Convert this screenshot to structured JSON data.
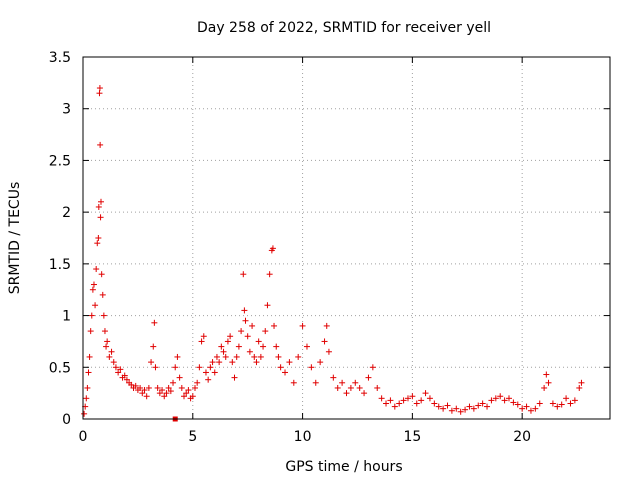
{
  "chart_data": {
    "type": "scatter",
    "title": "Day 258 of 2022, SRMTID for receiver yell",
    "xlabel": "GPS time / hours",
    "ylabel": "SRMTID / TECUs",
    "xlim": [
      0,
      24
    ],
    "ylim": [
      0,
      3.5
    ],
    "xticks": [
      0,
      5,
      10,
      15,
      20
    ],
    "yticks": [
      0,
      0.5,
      1,
      1.5,
      2,
      2.5,
      3,
      3.5
    ],
    "xtick_labels": [
      "0",
      "5",
      "10",
      "15",
      "20"
    ],
    "ytick_labels": [
      "0",
      "0.5",
      "1",
      "1.5",
      "2",
      "2.5",
      "3",
      "3.5"
    ],
    "grid": true,
    "marker": "plus",
    "color": "#e00000",
    "series": [
      {
        "name": "SRMTID",
        "points": [
          [
            0.05,
            0.05
          ],
          [
            0.1,
            0.12
          ],
          [
            0.15,
            0.2
          ],
          [
            0.2,
            0.3
          ],
          [
            0.25,
            0.45
          ],
          [
            0.3,
            0.6
          ],
          [
            0.35,
            0.85
          ],
          [
            0.4,
            1.0
          ],
          [
            0.45,
            1.25
          ],
          [
            0.5,
            1.3
          ],
          [
            0.55,
            1.1
          ],
          [
            0.6,
            1.45
          ],
          [
            0.65,
            1.7
          ],
          [
            0.7,
            1.75
          ],
          [
            0.72,
            2.05
          ],
          [
            0.75,
            3.15
          ],
          [
            0.77,
            3.2
          ],
          [
            0.78,
            2.65
          ],
          [
            0.8,
            1.95
          ],
          [
            0.82,
            2.1
          ],
          [
            0.85,
            1.4
          ],
          [
            0.9,
            1.2
          ],
          [
            0.95,
            1.0
          ],
          [
            1.0,
            0.85
          ],
          [
            1.05,
            0.7
          ],
          [
            1.1,
            0.75
          ],
          [
            1.2,
            0.6
          ],
          [
            1.3,
            0.65
          ],
          [
            1.4,
            0.55
          ],
          [
            1.5,
            0.5
          ],
          [
            1.6,
            0.45
          ],
          [
            1.7,
            0.48
          ],
          [
            1.8,
            0.4
          ],
          [
            1.9,
            0.42
          ],
          [
            2.0,
            0.38
          ],
          [
            2.1,
            0.35
          ],
          [
            2.2,
            0.33
          ],
          [
            2.3,
            0.3
          ],
          [
            2.4,
            0.32
          ],
          [
            2.5,
            0.28
          ],
          [
            2.6,
            0.3
          ],
          [
            2.7,
            0.25
          ],
          [
            2.8,
            0.28
          ],
          [
            2.9,
            0.22
          ],
          [
            3.0,
            0.3
          ],
          [
            3.1,
            0.55
          ],
          [
            3.2,
            0.7
          ],
          [
            3.25,
            0.93
          ],
          [
            3.3,
            0.5
          ],
          [
            3.4,
            0.3
          ],
          [
            3.5,
            0.25
          ],
          [
            3.6,
            0.28
          ],
          [
            3.7,
            0.22
          ],
          [
            3.8,
            0.25
          ],
          [
            3.9,
            0.3
          ],
          [
            4.0,
            0.27
          ],
          [
            4.1,
            0.35
          ],
          [
            4.2,
            0.5
          ],
          [
            4.3,
            0.6
          ],
          [
            4.4,
            0.4
          ],
          [
            4.5,
            0.3
          ],
          [
            4.6,
            0.22
          ],
          [
            4.7,
            0.25
          ],
          [
            4.8,
            0.28
          ],
          [
            4.9,
            0.2
          ],
          [
            5.0,
            0.22
          ],
          [
            5.1,
            0.3
          ],
          [
            5.2,
            0.35
          ],
          [
            5.3,
            0.5
          ],
          [
            5.4,
            0.75
          ],
          [
            5.5,
            0.8
          ],
          [
            5.6,
            0.45
          ],
          [
            5.7,
            0.38
          ],
          [
            5.8,
            0.5
          ],
          [
            5.9,
            0.55
          ],
          [
            6.0,
            0.45
          ],
          [
            6.1,
            0.6
          ],
          [
            6.2,
            0.55
          ],
          [
            6.3,
            0.7
          ],
          [
            6.4,
            0.65
          ],
          [
            6.5,
            0.6
          ],
          [
            6.6,
            0.75
          ],
          [
            6.7,
            0.8
          ],
          [
            6.8,
            0.55
          ],
          [
            6.9,
            0.4
          ],
          [
            7.0,
            0.6
          ],
          [
            7.1,
            0.7
          ],
          [
            7.2,
            0.85
          ],
          [
            7.3,
            1.4
          ],
          [
            7.35,
            1.05
          ],
          [
            7.4,
            0.95
          ],
          [
            7.5,
            0.8
          ],
          [
            7.6,
            0.65
          ],
          [
            7.7,
            0.9
          ],
          [
            7.8,
            0.6
          ],
          [
            7.9,
            0.55
          ],
          [
            8.0,
            0.75
          ],
          [
            8.1,
            0.6
          ],
          [
            8.2,
            0.7
          ],
          [
            8.3,
            0.85
          ],
          [
            8.4,
            1.1
          ],
          [
            8.5,
            1.4
          ],
          [
            8.6,
            1.63
          ],
          [
            8.65,
            1.65
          ],
          [
            8.7,
            0.9
          ],
          [
            8.8,
            0.7
          ],
          [
            8.9,
            0.6
          ],
          [
            9.0,
            0.5
          ],
          [
            9.2,
            0.45
          ],
          [
            9.4,
            0.55
          ],
          [
            9.6,
            0.35
          ],
          [
            9.8,
            0.6
          ],
          [
            10.0,
            0.9
          ],
          [
            10.2,
            0.7
          ],
          [
            10.4,
            0.5
          ],
          [
            10.6,
            0.35
          ],
          [
            10.8,
            0.55
          ],
          [
            11.0,
            0.75
          ],
          [
            11.1,
            0.9
          ],
          [
            11.2,
            0.65
          ],
          [
            11.4,
            0.4
          ],
          [
            11.6,
            0.3
          ],
          [
            11.8,
            0.35
          ],
          [
            12.0,
            0.25
          ],
          [
            12.2,
            0.3
          ],
          [
            12.4,
            0.35
          ],
          [
            12.6,
            0.3
          ],
          [
            12.8,
            0.25
          ],
          [
            13.0,
            0.4
          ],
          [
            13.2,
            0.5
          ],
          [
            13.4,
            0.3
          ],
          [
            13.6,
            0.2
          ],
          [
            13.8,
            0.15
          ],
          [
            14.0,
            0.18
          ],
          [
            14.2,
            0.12
          ],
          [
            14.4,
            0.15
          ],
          [
            14.6,
            0.18
          ],
          [
            14.8,
            0.2
          ],
          [
            15.0,
            0.22
          ],
          [
            15.2,
            0.15
          ],
          [
            15.4,
            0.18
          ],
          [
            15.6,
            0.25
          ],
          [
            15.8,
            0.2
          ],
          [
            16.0,
            0.15
          ],
          [
            16.2,
            0.12
          ],
          [
            16.4,
            0.1
          ],
          [
            16.6,
            0.13
          ],
          [
            16.8,
            0.08
          ],
          [
            17.0,
            0.1
          ],
          [
            17.2,
            0.07
          ],
          [
            17.4,
            0.09
          ],
          [
            17.6,
            0.12
          ],
          [
            17.8,
            0.1
          ],
          [
            18.0,
            0.13
          ],
          [
            18.2,
            0.15
          ],
          [
            18.4,
            0.12
          ],
          [
            18.6,
            0.18
          ],
          [
            18.8,
            0.2
          ],
          [
            19.0,
            0.22
          ],
          [
            19.2,
            0.18
          ],
          [
            19.4,
            0.2
          ],
          [
            19.6,
            0.16
          ],
          [
            19.8,
            0.14
          ],
          [
            20.0,
            0.1
          ],
          [
            20.2,
            0.12
          ],
          [
            20.4,
            0.08
          ],
          [
            20.6,
            0.1
          ],
          [
            20.8,
            0.15
          ],
          [
            21.0,
            0.3
          ],
          [
            21.1,
            0.43
          ],
          [
            21.2,
            0.35
          ],
          [
            21.4,
            0.15
          ],
          [
            21.6,
            0.12
          ],
          [
            21.8,
            0.14
          ],
          [
            22.0,
            0.2
          ],
          [
            22.2,
            0.15
          ],
          [
            22.4,
            0.18
          ],
          [
            22.6,
            0.3
          ],
          [
            22.7,
            0.35
          ]
        ]
      }
    ],
    "extra_marker": {
      "x": 4.2,
      "y": 0.0,
      "shape": "square"
    }
  }
}
